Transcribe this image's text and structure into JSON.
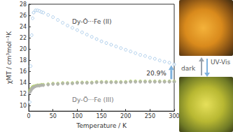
{
  "chart_data": {
    "type": "scatter",
    "x_label": "Temperature / K",
    "y_label": "χMT / cm³mol⁻¹K",
    "x": [
      2,
      4,
      6,
      8,
      10,
      14,
      18,
      22,
      26,
      30,
      40,
      50,
      60,
      70,
      80,
      90,
      100,
      110,
      120,
      130,
      140,
      150,
      160,
      170,
      180,
      190,
      200,
      210,
      220,
      230,
      240,
      250,
      260,
      270,
      280,
      290,
      300
    ],
    "series": [
      {
        "color": "#9cc3e6",
        "marker": "open_circle",
        "values": [
          10.6,
          17.0,
          22.5,
          25.5,
          26.5,
          26.9,
          26.9,
          26.8,
          26.6,
          26.5,
          26.1,
          25.7,
          25.2,
          24.7,
          24.2,
          23.8,
          23.4,
          23.0,
          22.6,
          22.2,
          21.8,
          21.4,
          21.1,
          20.8,
          20.5,
          20.2,
          19.9,
          19.6,
          19.3,
          19.0,
          18.8,
          18.5,
          18.3,
          18.0,
          17.8,
          17.6,
          17.3
        ]
      },
      {
        "color": "#b5d56a",
        "marker": "circle",
        "values": [
          12.6,
          12.9,
          13.1,
          13.3,
          13.4,
          13.5,
          13.6,
          13.6,
          13.7,
          13.7,
          13.8,
          13.9,
          13.9,
          14.0,
          14.0,
          14.0,
          14.1,
          14.1,
          14.1,
          14.1,
          14.2,
          14.2,
          14.2,
          14.2,
          14.2,
          14.2,
          14.2,
          14.3,
          14.3,
          14.3,
          14.3,
          14.3,
          14.3,
          14.3,
          14.3,
          14.3,
          14.3
        ]
      },
      {
        "color": "#b0b0b0",
        "marker": "circle",
        "values": [
          12.3,
          12.6,
          12.9,
          13.1,
          13.2,
          13.4,
          13.5,
          13.5,
          13.6,
          13.6,
          13.7,
          13.8,
          13.8,
          13.9,
          13.9,
          13.9,
          14.0,
          14.0,
          14.0,
          14.0,
          14.1,
          14.1,
          14.1,
          14.1,
          14.1,
          14.1,
          14.1,
          14.2,
          14.2,
          14.2,
          14.2,
          14.2,
          14.2,
          14.2,
          14.2,
          14.2,
          14.2
        ]
      }
    ],
    "annotations": [
      "Dy-Ȯ···Fe (II)",
      "Dy-Ö···Fe (III)",
      "20.9%",
      "UV-Vis",
      "dark"
    ],
    "xlim": [
      0,
      300
    ],
    "xticks": [
      0,
      50,
      100,
      150,
      200,
      250,
      300
    ],
    "ylim": [
      9,
      28
    ],
    "yticks": [
      10,
      12,
      14,
      16,
      18,
      20,
      22,
      24,
      26,
      28
    ],
    "grid": false
  }
}
